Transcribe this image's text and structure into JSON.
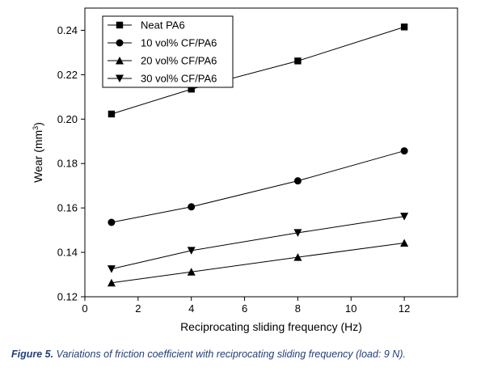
{
  "colors": {
    "caption": "#1f3f7a",
    "series": "#000000"
  },
  "caption": {
    "label": "Figure 5.",
    "text": "Variations of friction coefficient with reciprocating sliding frequency (load: 9 N)."
  },
  "chart_data": {
    "type": "line",
    "title": "",
    "xlabel": "Reciprocating sliding frequency (Hz)",
    "ylabel": "Wear (mm3)",
    "ylabel_parts": {
      "main": "Wear (mm",
      "sup": "3",
      "end": ")"
    },
    "xlim": [
      0,
      14
    ],
    "ylim": [
      0.12,
      0.25
    ],
    "xticks": [
      0,
      2,
      4,
      6,
      8,
      10,
      12
    ],
    "yticks": [
      0.12,
      0.14,
      0.16,
      0.18,
      0.2,
      0.22,
      0.24
    ],
    "ytick_labels": [
      "0.12",
      "0.14",
      "0.16",
      "0.18",
      "0.20",
      "0.22",
      "0.24"
    ],
    "grid": false,
    "legend_position": "top-left",
    "x": [
      1,
      4,
      8,
      12
    ],
    "series": [
      {
        "name": "Neat PA6",
        "marker": "square",
        "values": [
          0.2023,
          0.2135,
          0.2262,
          0.2415
        ]
      },
      {
        "name": "10 vol% CF/PA6",
        "marker": "circle",
        "values": [
          0.1535,
          0.1605,
          0.1722,
          0.1857
        ]
      },
      {
        "name": "20 vol% CF/PA6",
        "marker": "triangle-up",
        "values": [
          0.1263,
          0.1312,
          0.1378,
          0.1442
        ]
      },
      {
        "name": "30 vol% CF/PA6",
        "marker": "triangle-down",
        "values": [
          0.1325,
          0.1408,
          0.1488,
          0.1562
        ]
      }
    ]
  }
}
